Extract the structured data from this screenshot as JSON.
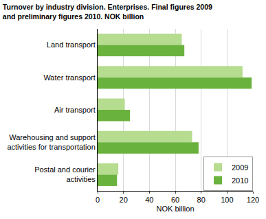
{
  "chart_data": {
    "type": "bar",
    "orientation": "horizontal",
    "title": "Turnover by industry division. Enterprises. Final figures 2009 and preliminary figures 2010. NOK billion",
    "xlabel": "NOK billion",
    "categories": [
      "Land transport",
      "Water transport",
      "Air transport",
      "Warehousing and support activities for transportation",
      "Postal and courier activities"
    ],
    "series": [
      {
        "name": "2009",
        "color": "#b6dc8f",
        "values": [
          65,
          112,
          21,
          73,
          16
        ]
      },
      {
        "name": "2010",
        "color": "#6ab23e",
        "values": [
          67,
          119,
          25,
          78,
          15
        ]
      }
    ],
    "xlim": [
      0,
      120
    ],
    "xticks": [
      0,
      20,
      40,
      60,
      80,
      100,
      120
    ],
    "grid": true,
    "legend": "bottom right"
  }
}
